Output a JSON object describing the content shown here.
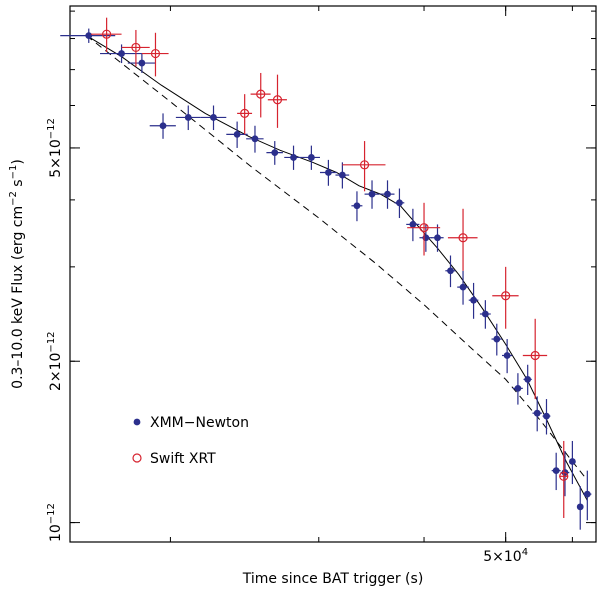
{
  "chart_data": {
    "type": "scatter",
    "title": "",
    "xlabel": "Time since BAT trigger (s)",
    "ylabel": "0.3–10.0 keV Flux (erg cm",
    "ylabel_exp1": "−2",
    "ylabel_mid": " s",
    "ylabel_exp2": "−1",
    "ylabel_end": ")",
    "x_scale": "log",
    "y_scale": "log",
    "xlim": [
      15200,
      64000
    ],
    "ylim": [
      9.2e-13,
      9.2e-12
    ],
    "x_ticks": [
      {
        "value": 50000,
        "mantissa": "5×10",
        "exp": "4"
      }
    ],
    "y_ticks": [
      {
        "value": 1e-12,
        "mantissa": "10",
        "exp": "−12"
      },
      {
        "value": 2e-12,
        "mantissa": "2×10",
        "exp": "−12"
      },
      {
        "value": 5e-12,
        "mantissa": "5×10",
        "exp": "−12"
      }
    ],
    "legend": {
      "placement": "lower-left",
      "entries": [
        "XMM−Newton",
        "Swift XRT"
      ]
    },
    "colors": {
      "xmm": "#2b2f8c",
      "xrt": "#d6232f",
      "model": "#000000"
    },
    "series": [
      {
        "name": "XMM−Newton",
        "marker": "filled-circle",
        "points": [
          {
            "x": 16000,
            "y": 8.1e-12,
            "xerr": 1200,
            "yerr": 2.5e-13
          },
          {
            "x": 17500,
            "y": 7.5e-12,
            "xerr": 1000,
            "yerr": 3e-13
          },
          {
            "x": 18500,
            "y": 7.2e-12,
            "xerr": 700,
            "yerr": 3e-13
          },
          {
            "x": 19600,
            "y": 5.5e-12,
            "xerr": 700,
            "yerr": 3e-13
          },
          {
            "x": 21000,
            "y": 5.7e-12,
            "xerr": 700,
            "yerr": 3e-13
          },
          {
            "x": 22500,
            "y": 5.7e-12,
            "xerr": 800,
            "yerr": 3e-13
          },
          {
            "x": 24000,
            "y": 5.3e-12,
            "xerr": 700,
            "yerr": 3e-13
          },
          {
            "x": 25200,
            "y": 5.2e-12,
            "xerr": 600,
            "yerr": 3e-13
          },
          {
            "x": 26600,
            "y": 4.9e-12,
            "xerr": 600,
            "yerr": 2.5e-13
          },
          {
            "x": 28000,
            "y": 4.8e-12,
            "xerr": 700,
            "yerr": 2.5e-13
          },
          {
            "x": 29400,
            "y": 4.8e-12,
            "xerr": 700,
            "yerr": 2.5e-13
          },
          {
            "x": 30800,
            "y": 4.5e-12,
            "xerr": 700,
            "yerr": 2.5e-13
          },
          {
            "x": 32000,
            "y": 4.45e-12,
            "xerr": 600,
            "yerr": 2.5e-13
          },
          {
            "x": 33300,
            "y": 3.9e-12,
            "xerr": 500,
            "yerr": 2.5e-13
          },
          {
            "x": 34700,
            "y": 4.1e-12,
            "xerr": 700,
            "yerr": 2.5e-13
          },
          {
            "x": 36200,
            "y": 4.1e-12,
            "xerr": 700,
            "yerr": 2.5e-13
          },
          {
            "x": 37400,
            "y": 3.95e-12,
            "xerr": 500,
            "yerr": 2.5e-13
          },
          {
            "x": 38800,
            "y": 3.6e-12,
            "xerr": 700,
            "yerr": 2.5e-13
          },
          {
            "x": 40200,
            "y": 3.4e-12,
            "xerr": 700,
            "yerr": 2e-13
          },
          {
            "x": 41500,
            "y": 3.4e-12,
            "xerr": 700,
            "yerr": 2e-13
          },
          {
            "x": 43000,
            "y": 2.95e-12,
            "xerr": 600,
            "yerr": 2e-13
          },
          {
            "x": 44500,
            "y": 2.75e-12,
            "xerr": 700,
            "yerr": 2e-13
          },
          {
            "x": 45800,
            "y": 2.6e-12,
            "xerr": 600,
            "yerr": 2e-13
          },
          {
            "x": 47300,
            "y": 2.45e-12,
            "xerr": 700,
            "yerr": 1.5e-13
          },
          {
            "x": 48800,
            "y": 2.2e-12,
            "xerr": 700,
            "yerr": 1.5e-13
          },
          {
            "x": 50200,
            "y": 2.05e-12,
            "xerr": 700,
            "yerr": 1.5e-13
          },
          {
            "x": 51700,
            "y": 1.78e-12,
            "xerr": 700,
            "yerr": 1.2e-13
          },
          {
            "x": 53100,
            "y": 1.85e-12,
            "xerr": 600,
            "yerr": 1.2e-13
          },
          {
            "x": 54500,
            "y": 1.6e-12,
            "xerr": 700,
            "yerr": 1.2e-13
          },
          {
            "x": 55900,
            "y": 1.58e-12,
            "xerr": 600,
            "yerr": 1.2e-13
          },
          {
            "x": 57400,
            "y": 1.25e-12,
            "xerr": 700,
            "yerr": 1e-13
          },
          {
            "x": 58800,
            "y": 1.24e-12,
            "xerr": 700,
            "yerr": 1.2e-13
          },
          {
            "x": 60000,
            "y": 1.3e-12,
            "xerr": 500,
            "yerr": 1.2e-13
          },
          {
            "x": 61300,
            "y": 1.07e-12,
            "xerr": 500,
            "yerr": 1e-13
          },
          {
            "x": 62500,
            "y": 1.13e-12,
            "xerr": 700,
            "yerr": 1.2e-13
          }
        ]
      },
      {
        "name": "Swift XRT",
        "marker": "open-circle",
        "points": [
          {
            "x": 16800,
            "y": 8.15e-12,
            "xerr": 700,
            "yerr": 6e-13
          },
          {
            "x": 18200,
            "y": 7.7e-12,
            "xerr": 700,
            "yerr": 6e-13
          },
          {
            "x": 19200,
            "y": 7.5e-12,
            "xerr": 700,
            "yerr": 7e-13
          },
          {
            "x": 24500,
            "y": 5.8e-12,
            "xerr": 500,
            "yerr": 5e-13
          },
          {
            "x": 25600,
            "y": 6.3e-12,
            "xerr": 700,
            "yerr": 6e-13
          },
          {
            "x": 26800,
            "y": 6.15e-12,
            "xerr": 700,
            "yerr": 7e-13
          },
          {
            "x": 34000,
            "y": 4.65e-12,
            "xerr": 2000,
            "yerr": 5e-13
          },
          {
            "x": 40000,
            "y": 3.55e-12,
            "xerr": 1800,
            "yerr": 4e-13
          },
          {
            "x": 44500,
            "y": 3.4e-12,
            "xerr": 1800,
            "yerr": 4.5e-13
          },
          {
            "x": 50000,
            "y": 2.65e-12,
            "xerr": 1800,
            "yerr": 3.5e-13
          },
          {
            "x": 54200,
            "y": 2.05e-12,
            "xerr": 1800,
            "yerr": 3.5e-13
          },
          {
            "x": 58600,
            "y": 1.22e-12,
            "xerr": 700,
            "yerr": 2e-13
          }
        ]
      }
    ],
    "model_curves": [
      {
        "style": "solid",
        "points": [
          [
            15900,
            8.1e-12
          ],
          [
            17500,
            7.4e-12
          ],
          [
            19500,
            6.55e-12
          ],
          [
            22000,
            5.8e-12
          ],
          [
            24800,
            5.25e-12
          ],
          [
            27000,
            4.95e-12
          ],
          [
            29500,
            4.7e-12
          ],
          [
            31500,
            4.5e-12
          ],
          [
            33500,
            4.25e-12
          ],
          [
            35500,
            4.1e-12
          ],
          [
            37500,
            3.9e-12
          ],
          [
            39500,
            3.55e-12
          ],
          [
            41500,
            3.25e-12
          ],
          [
            44000,
            2.9e-12
          ],
          [
            47000,
            2.5e-12
          ],
          [
            50000,
            2.15e-12
          ],
          [
            53000,
            1.85e-12
          ],
          [
            56000,
            1.55e-12
          ],
          [
            59000,
            1.3e-12
          ],
          [
            62500,
            1.1e-12
          ]
        ]
      },
      {
        "style": "dashed",
        "points": [
          [
            15900,
            8.1e-12
          ],
          [
            20000,
            6.1e-12
          ],
          [
            25000,
            4.6e-12
          ],
          [
            30000,
            3.7e-12
          ],
          [
            35000,
            3.05e-12
          ],
          [
            40000,
            2.55e-12
          ],
          [
            45000,
            2.15e-12
          ],
          [
            50000,
            1.85e-12
          ],
          [
            55000,
            1.55e-12
          ],
          [
            60000,
            1.3e-12
          ],
          [
            62500,
            1.2e-12
          ]
        ]
      }
    ]
  }
}
